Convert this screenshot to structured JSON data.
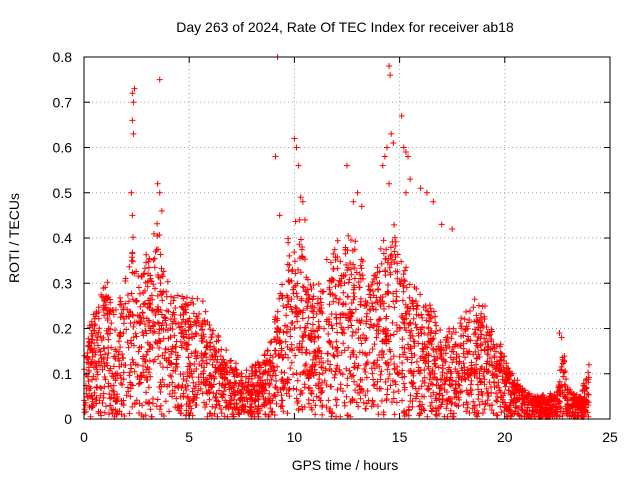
{
  "chart_data": {
    "type": "scatter",
    "title": "Day 263 of 2024, Rate Of TEC Index for receiver ab18",
    "xlabel": "GPS time / hours",
    "ylabel": "ROTI / TECUs",
    "xlim": [
      0,
      25
    ],
    "ylim": [
      0,
      0.8
    ],
    "xticks": [
      0,
      5,
      10,
      15,
      20,
      25
    ],
    "yticks": [
      0,
      0.1,
      0.2,
      0.3,
      0.4,
      0.5,
      0.6,
      0.7,
      0.8
    ],
    "grid": true,
    "marker": "+",
    "color": "#ff0000",
    "envelope": [
      [
        0.0,
        0.13
      ],
      [
        0.3,
        0.2
      ],
      [
        0.6,
        0.24
      ],
      [
        1.0,
        0.3
      ],
      [
        1.5,
        0.23
      ],
      [
        2.0,
        0.3
      ],
      [
        2.3,
        0.4
      ],
      [
        2.6,
        0.3
      ],
      [
        3.0,
        0.34
      ],
      [
        3.5,
        0.42
      ],
      [
        3.8,
        0.33
      ],
      [
        4.2,
        0.25
      ],
      [
        4.6,
        0.27
      ],
      [
        5.0,
        0.26
      ],
      [
        5.5,
        0.25
      ],
      [
        6.0,
        0.22
      ],
      [
        6.5,
        0.16
      ],
      [
        7.0,
        0.13
      ],
      [
        7.5,
        0.1
      ],
      [
        8.0,
        0.11
      ],
      [
        8.5,
        0.13
      ],
      [
        9.0,
        0.19
      ],
      [
        9.3,
        0.3
      ],
      [
        9.6,
        0.38
      ],
      [
        10.0,
        0.42
      ],
      [
        10.3,
        0.45
      ],
      [
        10.6,
        0.3
      ],
      [
        11.0,
        0.28
      ],
      [
        11.5,
        0.33
      ],
      [
        12.0,
        0.36
      ],
      [
        12.5,
        0.42
      ],
      [
        13.0,
        0.37
      ],
      [
        13.5,
        0.3
      ],
      [
        14.0,
        0.34
      ],
      [
        14.3,
        0.4
      ],
      [
        14.7,
        0.42
      ],
      [
        15.0,
        0.36
      ],
      [
        15.5,
        0.3
      ],
      [
        16.0,
        0.27
      ],
      [
        16.5,
        0.24
      ],
      [
        17.0,
        0.2
      ],
      [
        17.5,
        0.18
      ],
      [
        18.0,
        0.22
      ],
      [
        18.5,
        0.27
      ],
      [
        19.0,
        0.24
      ],
      [
        19.5,
        0.2
      ],
      [
        20.0,
        0.13
      ],
      [
        20.5,
        0.09
      ],
      [
        21.0,
        0.06
      ],
      [
        21.5,
        0.05
      ],
      [
        22.0,
        0.05
      ],
      [
        22.5,
        0.06
      ],
      [
        22.8,
        0.17
      ],
      [
        23.0,
        0.07
      ],
      [
        23.5,
        0.05
      ],
      [
        24.0,
        0.1
      ]
    ],
    "outliers": [
      [
        2.3,
        0.72
      ],
      [
        2.35,
        0.7
      ],
      [
        2.4,
        0.73
      ],
      [
        2.3,
        0.66
      ],
      [
        2.35,
        0.63
      ],
      [
        2.25,
        0.5
      ],
      [
        2.3,
        0.45
      ],
      [
        3.6,
        0.75
      ],
      [
        3.5,
        0.52
      ],
      [
        3.6,
        0.5
      ],
      [
        3.7,
        0.46
      ],
      [
        9.2,
        0.8
      ],
      [
        9.1,
        0.58
      ],
      [
        9.3,
        0.45
      ],
      [
        10.0,
        0.62
      ],
      [
        10.1,
        0.6
      ],
      [
        10.2,
        0.56
      ],
      [
        10.3,
        0.49
      ],
      [
        10.4,
        0.48
      ],
      [
        10.5,
        0.44
      ],
      [
        12.5,
        0.56
      ],
      [
        12.8,
        0.48
      ],
      [
        13.0,
        0.5
      ],
      [
        13.2,
        0.47
      ],
      [
        14.2,
        0.56
      ],
      [
        14.3,
        0.58
      ],
      [
        14.4,
        0.6
      ],
      [
        14.5,
        0.78
      ],
      [
        14.55,
        0.76
      ],
      [
        14.6,
        0.63
      ],
      [
        14.7,
        0.61
      ],
      [
        14.5,
        0.52
      ],
      [
        15.1,
        0.67
      ],
      [
        15.2,
        0.6
      ],
      [
        15.3,
        0.59
      ],
      [
        15.4,
        0.58
      ],
      [
        15.5,
        0.53
      ],
      [
        15.3,
        0.5
      ],
      [
        16.0,
        0.51
      ],
      [
        16.3,
        0.5
      ],
      [
        16.6,
        0.48
      ],
      [
        17.0,
        0.43
      ],
      [
        17.5,
        0.42
      ],
      [
        22.6,
        0.19
      ],
      [
        22.7,
        0.18
      ],
      [
        24.0,
        0.12
      ]
    ]
  }
}
